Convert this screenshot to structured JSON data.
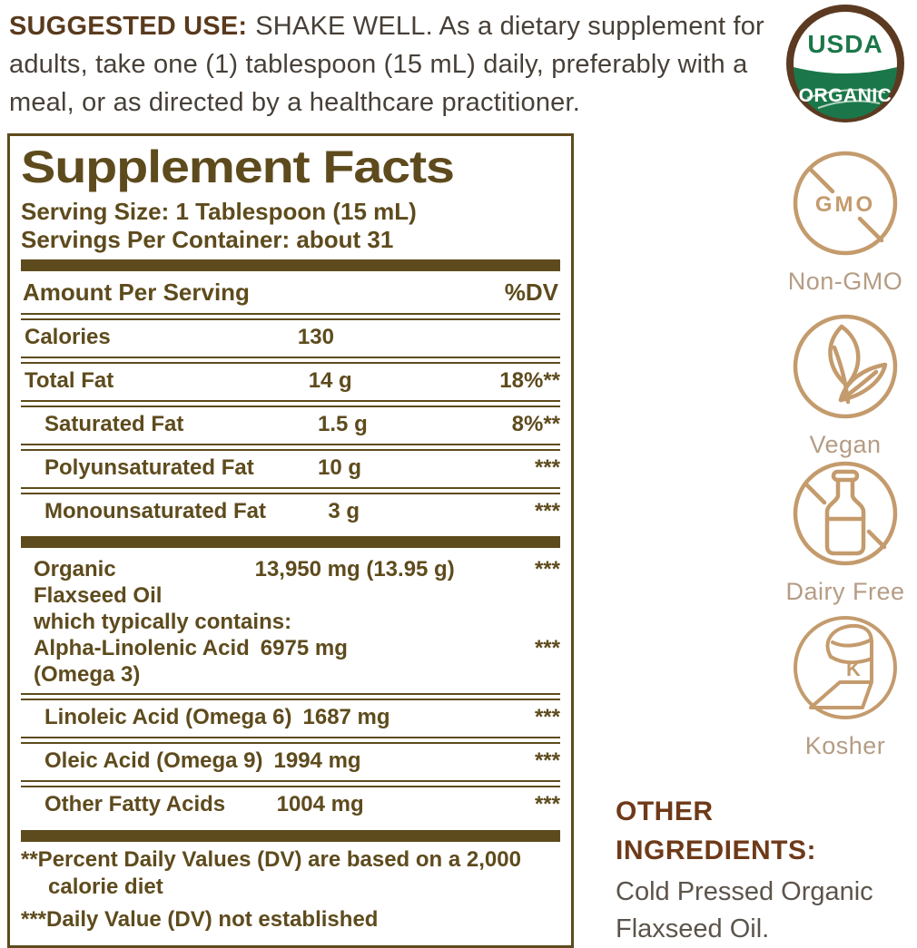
{
  "suggested_use": {
    "label": "SUGGESTED USE:",
    "text": "SHAKE WELL. As a dietary supplement for adults, take one (1) tablespoon (15 mL) daily, preferably with a meal, or as directed by a healthcare practitioner."
  },
  "usda_seal": {
    "line1": "USDA",
    "line2": "ORGANIC"
  },
  "badges": {
    "items": [
      {
        "id": "non-gmo",
        "icon": "gmo-crossed-icon",
        "icon_text": "GMO",
        "label": "Non-GMO"
      },
      {
        "id": "vegan",
        "icon": "leaf-icon",
        "icon_text": "",
        "label": "Vegan"
      },
      {
        "id": "dairy-free",
        "icon": "milk-bottle-crossed-icon",
        "icon_text": "",
        "label": "Dairy Free"
      },
      {
        "id": "kosher",
        "icon": "kosher-parve-icon",
        "icon_text": "K",
        "label": "Kosher"
      }
    ]
  },
  "supplement_facts": {
    "title": "Supplement Facts",
    "serving_size": "Serving Size: 1 Tablespoon (15 mL)",
    "servings_per_container": "Servings Per Container: about 31",
    "header": {
      "amount": "Amount Per Serving",
      "dv": "%DV"
    },
    "rows": [
      {
        "id": "calories",
        "indent": 0,
        "rule_after": "double",
        "lines": [
          {
            "name": "Calories",
            "amount": "130",
            "dv": ""
          }
        ]
      },
      {
        "id": "total-fat",
        "indent": 0,
        "rule_after": "double",
        "lines": [
          {
            "name": "Total Fat",
            "amount": "14 g",
            "dv": "18%**"
          }
        ]
      },
      {
        "id": "saturated-fat",
        "indent": 2,
        "rule_after": "double",
        "lines": [
          {
            "name": "Saturated Fat",
            "amount": "1.5 g",
            "dv": "8%**"
          }
        ]
      },
      {
        "id": "polyunsaturated-fat",
        "indent": 2,
        "rule_after": "double",
        "lines": [
          {
            "name": "Polyunsaturated Fat",
            "amount": "10 g",
            "dv": "***"
          }
        ]
      },
      {
        "id": "monounsaturated-fat",
        "indent": 2,
        "rule_after": "thick",
        "lines": [
          {
            "name": "Monounsaturated Fat",
            "amount": "3 g",
            "dv": "***"
          }
        ]
      },
      {
        "id": "organic-flaxseed",
        "indent": 1,
        "rule_after": "double",
        "lines": [
          {
            "name": "Organic",
            "amount": "13,950 mg (13.95 g)",
            "dv": "***"
          },
          {
            "name": "Flaxseed Oil"
          },
          {
            "name": "which typically contains:"
          },
          {
            "name": "Alpha-Linolenic Acid",
            "amount": "6975 mg",
            "dv": "***"
          },
          {
            "name": "(Omega 3)"
          }
        ]
      },
      {
        "id": "linoleic-acid",
        "indent": 2,
        "rule_after": "double",
        "lines": [
          {
            "name": "Linoleic Acid (Omega 6)",
            "amount": "1687 mg",
            "dv": "***"
          }
        ]
      },
      {
        "id": "oleic-acid",
        "indent": 2,
        "rule_after": "double",
        "lines": [
          {
            "name": "Oleic Acid (Omega 9)",
            "amount": "1994 mg",
            "dv": "***"
          }
        ]
      },
      {
        "id": "other-fatty-acids",
        "indent": 2,
        "rule_after": "thick",
        "lines": [
          {
            "name": "Other Fatty Acids",
            "amount": "1004 mg",
            "dv": "***"
          }
        ]
      }
    ],
    "footnotes": [
      "**Percent Daily Values (DV) are based on a 2,000 calorie diet",
      "***Daily Value (DV) not established"
    ]
  },
  "other_ingredients": {
    "heading": "OTHER INGREDIENTS:",
    "text": "Cold Pressed Organic Flaxseed Oil."
  },
  "colors": {
    "olive": "#5e4b1d",
    "body_text": "#474038",
    "suggested_label": "#5a3a1d",
    "tan": "#c49b6d",
    "side_label": "#b59c84",
    "usda_ring": "#5c3a21",
    "usda_green": "#1b7749",
    "other_heading": "#6e3a19",
    "other_body": "#5c544b"
  }
}
